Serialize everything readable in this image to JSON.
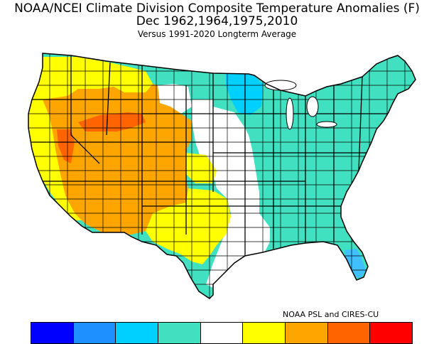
{
  "header": {
    "title_line1": "NOAA/NCEI Climate Division Composite Temperature Anomalies (F)",
    "title_line2": "Dec   1962,1964,1975,2010",
    "title_line3": "Versus 1991-2020 Longterm Average"
  },
  "credit": "NOAA PSL and CIRES-CU",
  "colors": {
    "yellow": "#ffff00",
    "orange": "#ffa500",
    "dark_orange": "#ff6400",
    "white": "#ffffff",
    "aquamarine": "#40e0c0",
    "cyan": "#00d0ff",
    "light_blue": "#40c0ff"
  },
  "legend": {
    "colors": [
      "#0000ff",
      "#1e90ff",
      "#00d0ff",
      "#40e0c0",
      "#ffffff",
      "#ffff00",
      "#ffa500",
      "#ff6400",
      "#ff0000"
    ]
  },
  "regions": [
    {
      "name": "pacific-coast",
      "anomaly_class": "yellow"
    },
    {
      "name": "west-interior",
      "anomaly_class": "orange"
    },
    {
      "name": "great-basin",
      "anomaly_class": "dark_orange"
    },
    {
      "name": "southern-plains",
      "anomaly_class": "yellow"
    },
    {
      "name": "central-plains",
      "anomaly_class": "white"
    },
    {
      "name": "east-and-north",
      "anomaly_class": "aquamarine"
    },
    {
      "name": "upper-midwest",
      "anomaly_class": "cyan"
    },
    {
      "name": "florida",
      "anomaly_class": "light_blue"
    }
  ]
}
